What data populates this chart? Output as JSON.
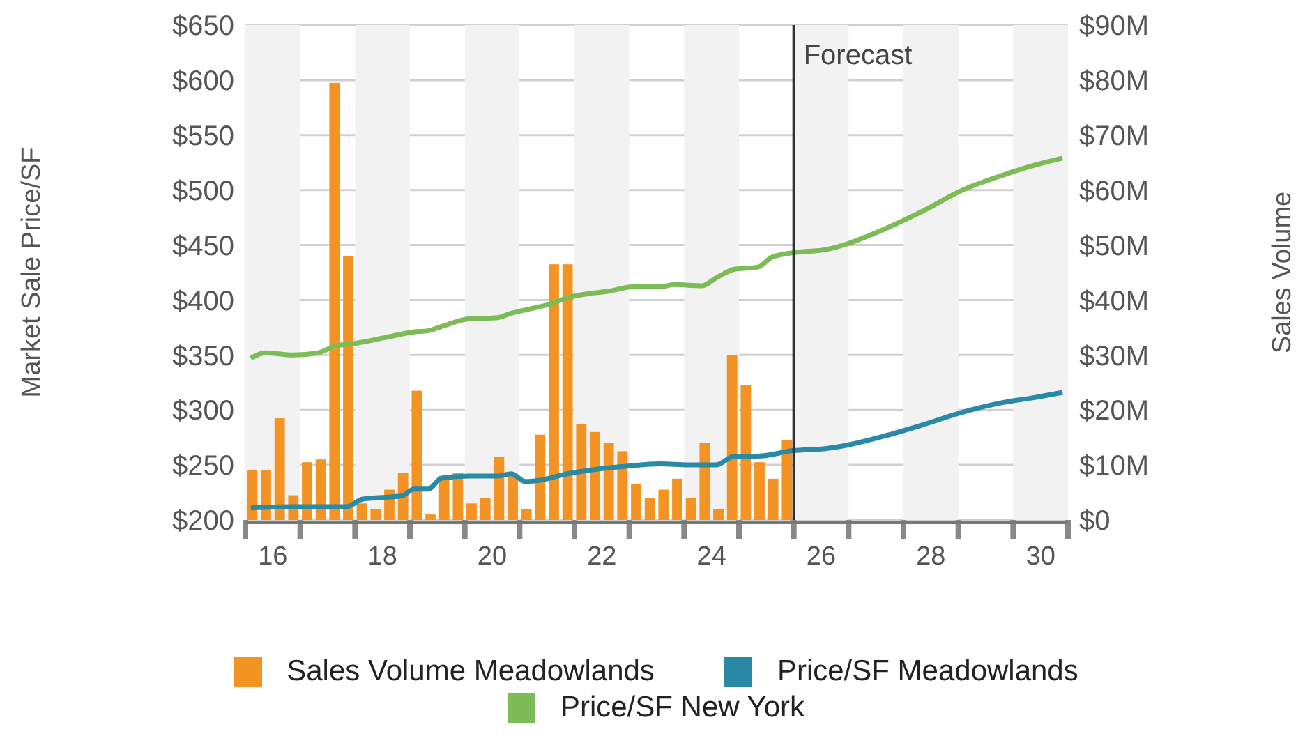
{
  "chart_data": {
    "type": "bar",
    "ylabel": "Market Sale Price/SF",
    "y2label": "Sales Volume",
    "xlim": [
      15.5,
      30.5
    ],
    "xticks": [
      {
        "value": 15.5,
        "label": null
      },
      16,
      {
        "value": 16.5,
        "label": null
      },
      {
        "value": 17.5,
        "label": null
      },
      18,
      {
        "value": 18.5,
        "label": null
      },
      {
        "value": 19.5,
        "label": null
      },
      20,
      {
        "value": 20.5,
        "label": null
      },
      {
        "value": 21.5,
        "label": null
      },
      22,
      {
        "value": 22.5,
        "label": null
      },
      {
        "value": 23.5,
        "label": null
      },
      24,
      {
        "value": 24.5,
        "label": null
      },
      {
        "value": 25.5,
        "label": null
      },
      26,
      {
        "value": 26.5,
        "label": null
      },
      {
        "value": 27.5,
        "label": null
      },
      28,
      {
        "value": 28.5,
        "label": null
      },
      {
        "value": 29.5,
        "label": null
      },
      30,
      {
        "value": 30.5,
        "label": null
      }
    ],
    "ylim": [
      200,
      650
    ],
    "yticks": [
      {
        "value": 200,
        "label": "$200"
      },
      {
        "value": 250,
        "label": "$250"
      },
      {
        "value": 300,
        "label": "$300"
      },
      {
        "value": 350,
        "label": "$350"
      },
      {
        "value": 400,
        "label": "$400"
      },
      {
        "value": 450,
        "label": "$450"
      },
      {
        "value": 500,
        "label": "$500"
      },
      {
        "value": 550,
        "label": "$550"
      },
      {
        "value": 600,
        "label": "$600"
      },
      {
        "value": 650,
        "label": "$650"
      }
    ],
    "y2lim": [
      0,
      90
    ],
    "y2ticks": [
      {
        "value": 0,
        "label": "$0"
      },
      {
        "value": 10,
        "label": "$10M"
      },
      {
        "value": 20,
        "label": "$20M"
      },
      {
        "value": 30,
        "label": "$30M"
      },
      {
        "value": 40,
        "label": "$40M"
      },
      {
        "value": 50,
        "label": "$50M"
      },
      {
        "value": 60,
        "label": "$60M"
      },
      {
        "value": 70,
        "label": "$70M"
      },
      {
        "value": 80,
        "label": "$80M"
      },
      {
        "value": 90,
        "label": "$90M"
      }
    ],
    "grid": "y",
    "legend": "bottom",
    "bands": [
      {
        "axis": "x",
        "from": 15.5,
        "to": 16.5,
        "color": "#f2f2f2"
      },
      {
        "axis": "x",
        "from": 17.5,
        "to": 18.5,
        "color": "#f2f2f2"
      },
      {
        "axis": "x",
        "from": 19.5,
        "to": 20.5,
        "color": "#f2f2f2"
      },
      {
        "axis": "x",
        "from": 21.5,
        "to": 22.5,
        "color": "#f2f2f2"
      },
      {
        "axis": "x",
        "from": 23.5,
        "to": 24.5,
        "color": "#f2f2f2"
      },
      {
        "axis": "x",
        "from": 25.5,
        "to": 26.5,
        "color": "#f2f2f2"
      },
      {
        "axis": "x",
        "from": 27.5,
        "to": 28.5,
        "color": "#f2f2f2"
      },
      {
        "axis": "x",
        "from": 29.5,
        "to": 30.5,
        "color": "#f2f2f2"
      }
    ],
    "ref_lines": [
      {
        "axis": "x",
        "value": 25.5,
        "label": "Forecast",
        "color": "#333333"
      }
    ],
    "series": [
      {
        "name": "Sales Volume Meadowlands",
        "axis": "y2",
        "color": "#f39323",
        "x": [
          15.625,
          15.875,
          16.125,
          16.375,
          16.625,
          16.875,
          17.125,
          17.375,
          17.625,
          17.875,
          18.125,
          18.375,
          18.625,
          18.875,
          19.125,
          19.375,
          19.625,
          19.875,
          20.125,
          20.375,
          20.625,
          20.875,
          21.125,
          21.375,
          21.625,
          21.875,
          22.125,
          22.375,
          22.625,
          22.875,
          23.125,
          23.375,
          23.625,
          23.875,
          24.125,
          24.375,
          24.625,
          24.875,
          25.125,
          25.375
        ],
        "values": [
          9,
          9,
          18.5,
          4.5,
          10.5,
          11,
          79.5,
          48,
          3,
          2,
          5.5,
          8.5,
          23.5,
          1,
          8,
          8.5,
          3,
          4,
          11.5,
          8,
          2,
          15.5,
          46.5,
          46.5,
          17.5,
          16,
          14,
          12.5,
          6.5,
          4,
          5.5,
          7.5,
          4,
          14,
          2,
          30,
          24.5,
          10.5,
          7.5,
          14.5
        ]
      },
      {
        "name": "Price/SF Meadowlands",
        "type": "line",
        "color": "#2a8aa6",
        "x": [
          15.6,
          16.37,
          16.83,
          17.34,
          17.64,
          18.36,
          18.57,
          18.83,
          19.08,
          19.59,
          20.1,
          20.35,
          20.6,
          20.86,
          21.37,
          21.88,
          22.47,
          23.07,
          23.57,
          24.08,
          24.42,
          24.85,
          25.48,
          26.1,
          26.47,
          27.13,
          27.82,
          28.58,
          29.34,
          29.85,
          30.4
        ],
        "values": [
          211,
          212,
          212,
          212,
          219,
          222,
          228,
          228,
          238,
          240,
          240,
          242,
          235,
          236,
          242,
          246,
          249,
          251,
          250,
          250,
          258,
          258,
          263,
          265,
          268,
          276,
          286,
          298,
          307,
          311,
          316
        ]
      },
      {
        "name": "Price/SF New York",
        "type": "line",
        "color": "#7cbb55",
        "x": [
          15.6,
          15.86,
          16.37,
          16.83,
          17.13,
          17.55,
          18.06,
          18.57,
          18.83,
          19.08,
          19.59,
          20.1,
          20.35,
          20.69,
          21.03,
          21.37,
          21.79,
          22.13,
          22.56,
          23.07,
          23.32,
          23.83,
          24.08,
          24.42,
          24.85,
          25.1,
          25.48,
          26.1,
          26.47,
          27.13,
          27.82,
          28.58,
          29.34,
          29.85,
          30.4
        ],
        "values": [
          347,
          352,
          350,
          352,
          358,
          361,
          366,
          371,
          372,
          376,
          383,
          384,
          388,
          392,
          396,
          402,
          406,
          408,
          412,
          412,
          414,
          413,
          420,
          428,
          430,
          439,
          443,
          446,
          451,
          464,
          480,
          500,
          514,
          522,
          529
        ]
      }
    ]
  }
}
